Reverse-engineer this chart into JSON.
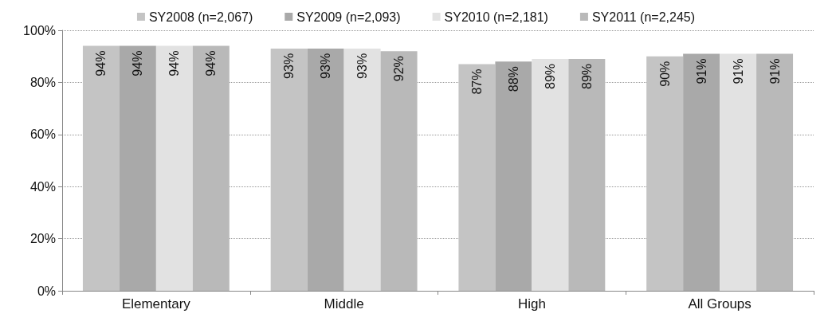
{
  "chart_data": {
    "type": "bar",
    "categories": [
      "Elementary",
      "Middle",
      "High",
      "All Groups"
    ],
    "series": [
      {
        "name": "SY2008 (n=2,067)",
        "color": "#c4c4c4",
        "values": [
          94,
          93,
          87,
          90
        ],
        "value_labels": [
          "94%",
          "93%",
          "87%",
          "90%"
        ]
      },
      {
        "name": "SY2009 (n=2,093)",
        "color": "#a9a9a9",
        "values": [
          94,
          93,
          88,
          91
        ],
        "value_labels": [
          "94%",
          "93%",
          "88%",
          "91%"
        ]
      },
      {
        "name": "SY2010 (n=2,181)",
        "color": "#e2e2e2",
        "values": [
          94,
          93,
          89,
          91
        ],
        "value_labels": [
          "94%",
          "93%",
          "89%",
          "91%"
        ]
      },
      {
        "name": "SY2011 (n=2,245)",
        "color": "#b9b9b9",
        "values": [
          94,
          92,
          89,
          91
        ],
        "value_labels": [
          "94%",
          "92%",
          "89%",
          "91%"
        ]
      }
    ],
    "ylim": [
      0,
      100
    ],
    "yticks": [
      {
        "value": 0,
        "label": "0%"
      },
      {
        "value": 20,
        "label": "20%"
      },
      {
        "value": 40,
        "label": "40%"
      },
      {
        "value": 60,
        "label": "60%"
      },
      {
        "value": 80,
        "label": "80%"
      },
      {
        "value": 100,
        "label": "100%"
      }
    ],
    "grid": "y",
    "legend": "top"
  }
}
